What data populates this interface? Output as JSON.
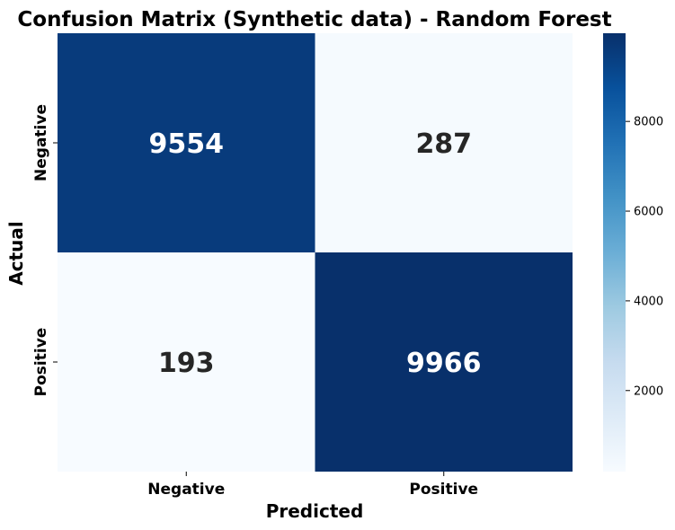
{
  "chart_data": {
    "type": "heatmap",
    "title": "Confusion Matrix (Synthetic data) - Random Forest",
    "xlabel": "Predicted",
    "ylabel": "Actual",
    "x_categories": [
      "Negative",
      "Positive"
    ],
    "y_categories": [
      "Negative",
      "Positive"
    ],
    "values": [
      [
        9554,
        287
      ],
      [
        193,
        9966
      ]
    ],
    "colormap": "Blues",
    "colorbar": {
      "ticks": [
        2000,
        4000,
        6000,
        8000
      ],
      "min": 193,
      "max": 9966
    },
    "grid": false,
    "colors": {
      "low": "#f7fbff",
      "high": "#08306b",
      "text_dark": "#262626",
      "text_light": "#ffffff"
    }
  }
}
